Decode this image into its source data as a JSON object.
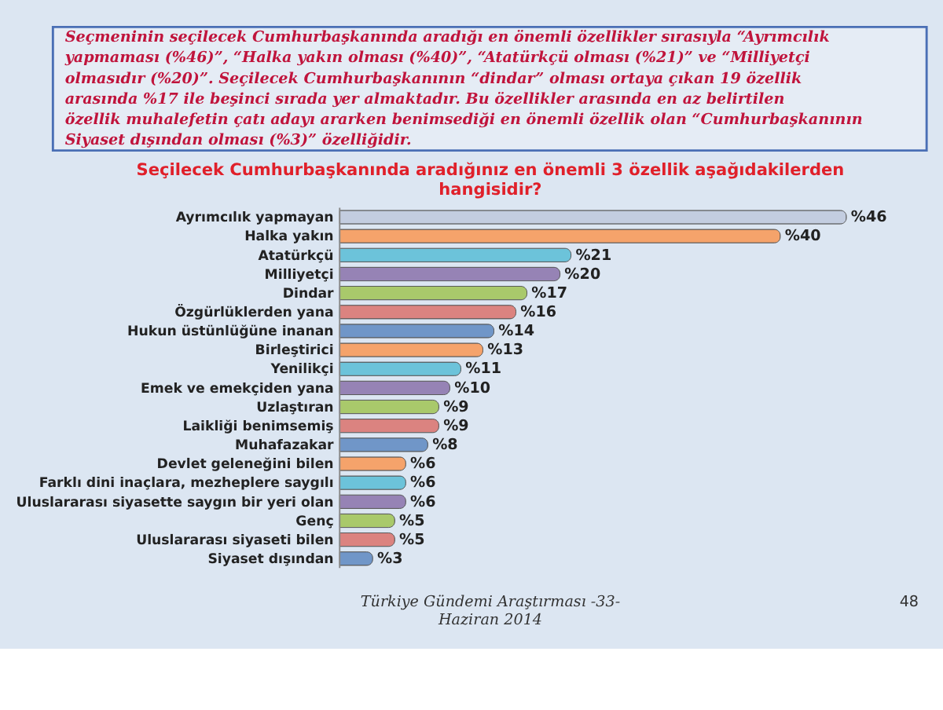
{
  "chart_data": {
    "type": "bar",
    "orientation": "horizontal",
    "title": [
      "Seçilecek Cumhurbaşkanında aradığınız en önemli 3 özellik aşağıdakilerden",
      "hangisidir?"
    ],
    "categories": [
      "Ayrımcılık yapmayan",
      "Halka yakın",
      "Atatürkçü",
      "Milliyetçi",
      "Dindar",
      "Özgürlüklerden yana",
      "Hukun üstünlüğüne inanan",
      "Birleştirici",
      "Yenilikçi",
      "Emek ve emekçiden yana",
      "Uzlaştıran",
      "Laikliği benimsemiş",
      "Muhafazakar",
      "Devlet geleneğini bilen",
      "Farklı dini inaçlara, mezheplere saygılı",
      "Uluslararası siyasette saygın bir yeri olan",
      "Genç",
      "Uluslararası siyaseti bilen",
      "Siyaset dışından"
    ],
    "values": [
      46,
      40,
      21,
      20,
      17,
      16,
      14,
      13,
      11,
      10,
      9,
      9,
      8,
      6,
      6,
      6,
      5,
      5,
      3
    ],
    "value_labels": [
      "%46",
      "%40",
      "%21",
      "%20",
      "%17",
      "%16",
      "%14",
      "%13",
      "%11",
      "%10",
      "%9",
      "%9",
      "%8",
      "%6",
      "%6",
      "%6",
      "%5",
      "%5",
      "%3"
    ],
    "colors": [
      "#c3cde0",
      "#f5a36b",
      "#6cc3da",
      "#9683b5",
      "#a9c96b",
      "#db8380",
      "#7096c8",
      "#f5a36b",
      "#6cc3da",
      "#9683b5",
      "#a9c96b",
      "#db8380",
      "#7096c8",
      "#f5a36b",
      "#6cc3da",
      "#9683b5",
      "#a9c96b",
      "#db8380",
      "#7096c8"
    ],
    "annotations": [
      "Seçmeninin seçilecek Cumhurbaşkanında aradığı en önemli özellikler sırasıyla “Ayrımcılık  yapmaması (%46)”, “Halka yakın olması (%40)”, “Atatürkçü olması (%21)”  ve “Milliyetçi olmasıdır (%20)”. Seçilecek Cumhurbaşkanının “dindar” olması ortaya çıkan 19 özellik arasında %17 ile beşinci sırada yer almaktadır. Bu özellikler arasında en az belirtilen özellik muhalefetin çatı adayı ararken benimsediği en önemli özellik olan “Cumhurbaşkanının Siyaset dışından olması (%3)” özelliğidir.",
      "Türkiye Gündemi Araştırması -33-\nHaziran 2014",
      "48"
    ],
    "grid": false,
    "legend": false
  }
}
